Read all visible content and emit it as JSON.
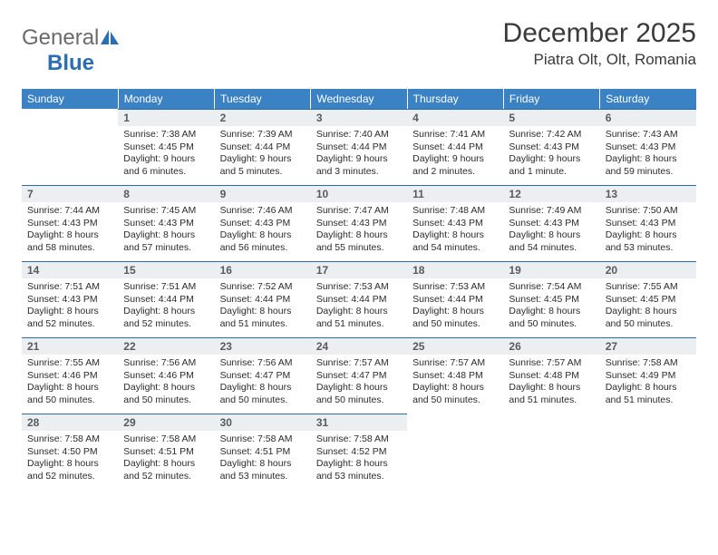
{
  "logo": {
    "general": "General",
    "blue": "Blue"
  },
  "title": "December 2025",
  "location": "Piatra Olt, Olt, Romania",
  "colors": {
    "header_bg": "#3b82c4",
    "header_text": "#ffffff",
    "daynum_bg": "#eceff1",
    "daynum_border": "#2f6aa8",
    "logo_gray": "#6a6a6a",
    "logo_blue": "#2a6fb3"
  },
  "weekdays": [
    "Sunday",
    "Monday",
    "Tuesday",
    "Wednesday",
    "Thursday",
    "Friday",
    "Saturday"
  ],
  "weeks": [
    [
      {
        "empty": true
      },
      {
        "num": "1",
        "sunrise": "7:38 AM",
        "sunset": "4:45 PM",
        "daylight": "9 hours and 6 minutes."
      },
      {
        "num": "2",
        "sunrise": "7:39 AM",
        "sunset": "4:44 PM",
        "daylight": "9 hours and 5 minutes."
      },
      {
        "num": "3",
        "sunrise": "7:40 AM",
        "sunset": "4:44 PM",
        "daylight": "9 hours and 3 minutes."
      },
      {
        "num": "4",
        "sunrise": "7:41 AM",
        "sunset": "4:44 PM",
        "daylight": "9 hours and 2 minutes."
      },
      {
        "num": "5",
        "sunrise": "7:42 AM",
        "sunset": "4:43 PM",
        "daylight": "9 hours and 1 minute."
      },
      {
        "num": "6",
        "sunrise": "7:43 AM",
        "sunset": "4:43 PM",
        "daylight": "8 hours and 59 minutes."
      }
    ],
    [
      {
        "num": "7",
        "sunrise": "7:44 AM",
        "sunset": "4:43 PM",
        "daylight": "8 hours and 58 minutes."
      },
      {
        "num": "8",
        "sunrise": "7:45 AM",
        "sunset": "4:43 PM",
        "daylight": "8 hours and 57 minutes."
      },
      {
        "num": "9",
        "sunrise": "7:46 AM",
        "sunset": "4:43 PM",
        "daylight": "8 hours and 56 minutes."
      },
      {
        "num": "10",
        "sunrise": "7:47 AM",
        "sunset": "4:43 PM",
        "daylight": "8 hours and 55 minutes."
      },
      {
        "num": "11",
        "sunrise": "7:48 AM",
        "sunset": "4:43 PM",
        "daylight": "8 hours and 54 minutes."
      },
      {
        "num": "12",
        "sunrise": "7:49 AM",
        "sunset": "4:43 PM",
        "daylight": "8 hours and 54 minutes."
      },
      {
        "num": "13",
        "sunrise": "7:50 AM",
        "sunset": "4:43 PM",
        "daylight": "8 hours and 53 minutes."
      }
    ],
    [
      {
        "num": "14",
        "sunrise": "7:51 AM",
        "sunset": "4:43 PM",
        "daylight": "8 hours and 52 minutes."
      },
      {
        "num": "15",
        "sunrise": "7:51 AM",
        "sunset": "4:44 PM",
        "daylight": "8 hours and 52 minutes."
      },
      {
        "num": "16",
        "sunrise": "7:52 AM",
        "sunset": "4:44 PM",
        "daylight": "8 hours and 51 minutes."
      },
      {
        "num": "17",
        "sunrise": "7:53 AM",
        "sunset": "4:44 PM",
        "daylight": "8 hours and 51 minutes."
      },
      {
        "num": "18",
        "sunrise": "7:53 AM",
        "sunset": "4:44 PM",
        "daylight": "8 hours and 50 minutes."
      },
      {
        "num": "19",
        "sunrise": "7:54 AM",
        "sunset": "4:45 PM",
        "daylight": "8 hours and 50 minutes."
      },
      {
        "num": "20",
        "sunrise": "7:55 AM",
        "sunset": "4:45 PM",
        "daylight": "8 hours and 50 minutes."
      }
    ],
    [
      {
        "num": "21",
        "sunrise": "7:55 AM",
        "sunset": "4:46 PM",
        "daylight": "8 hours and 50 minutes."
      },
      {
        "num": "22",
        "sunrise": "7:56 AM",
        "sunset": "4:46 PM",
        "daylight": "8 hours and 50 minutes."
      },
      {
        "num": "23",
        "sunrise": "7:56 AM",
        "sunset": "4:47 PM",
        "daylight": "8 hours and 50 minutes."
      },
      {
        "num": "24",
        "sunrise": "7:57 AM",
        "sunset": "4:47 PM",
        "daylight": "8 hours and 50 minutes."
      },
      {
        "num": "25",
        "sunrise": "7:57 AM",
        "sunset": "4:48 PM",
        "daylight": "8 hours and 50 minutes."
      },
      {
        "num": "26",
        "sunrise": "7:57 AM",
        "sunset": "4:48 PM",
        "daylight": "8 hours and 51 minutes."
      },
      {
        "num": "27",
        "sunrise": "7:58 AM",
        "sunset": "4:49 PM",
        "daylight": "8 hours and 51 minutes."
      }
    ],
    [
      {
        "num": "28",
        "sunrise": "7:58 AM",
        "sunset": "4:50 PM",
        "daylight": "8 hours and 52 minutes."
      },
      {
        "num": "29",
        "sunrise": "7:58 AM",
        "sunset": "4:51 PM",
        "daylight": "8 hours and 52 minutes."
      },
      {
        "num": "30",
        "sunrise": "7:58 AM",
        "sunset": "4:51 PM",
        "daylight": "8 hours and 53 minutes."
      },
      {
        "num": "31",
        "sunrise": "7:58 AM",
        "sunset": "4:52 PM",
        "daylight": "8 hours and 53 minutes."
      },
      {
        "empty": true
      },
      {
        "empty": true
      },
      {
        "empty": true
      }
    ]
  ],
  "labels": {
    "sunrise": "Sunrise:",
    "sunset": "Sunset:",
    "daylight": "Daylight:"
  }
}
